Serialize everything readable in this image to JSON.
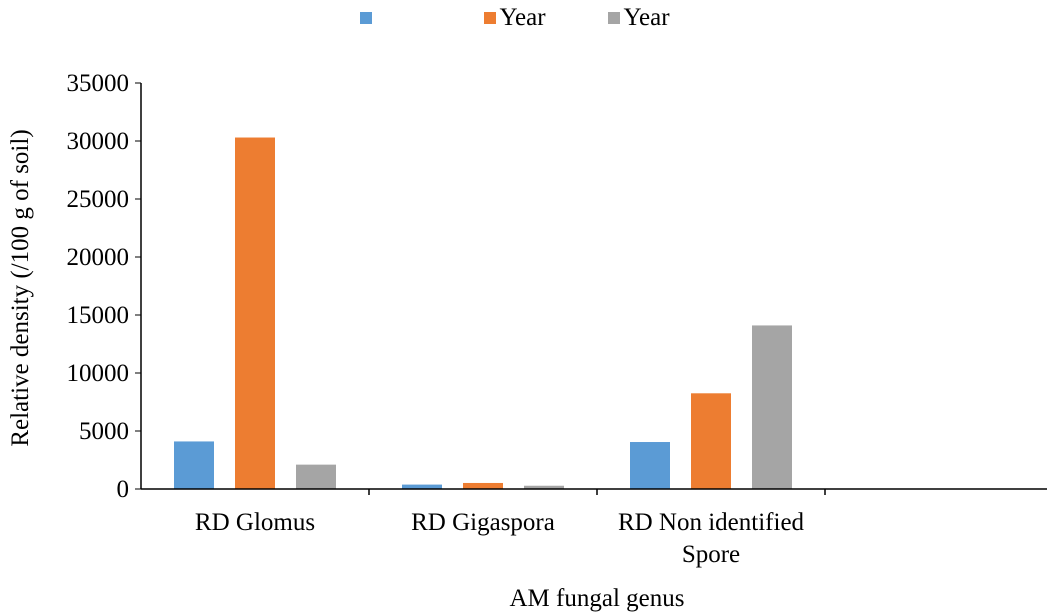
{
  "chart_data": {
    "type": "bar",
    "categories": [
      "RD Glomus",
      "RD Gigaspora",
      "RD Non identified Spore",
      ""
    ],
    "category_lines": [
      [
        "RD Glomus"
      ],
      [
        "RD Gigaspora"
      ],
      [
        "RD Non identified",
        "Spore"
      ],
      []
    ],
    "series": [
      {
        "name": "",
        "color": "#5b9bd5",
        "values": [
          4100,
          380,
          4050,
          null
        ]
      },
      {
        "name": "Year",
        "color": "#ed7d31",
        "values": [
          30300,
          520,
          8250,
          null
        ]
      },
      {
        "name": "Year",
        "color": "#a5a5a5",
        "values": [
          2100,
          280,
          14100,
          null
        ]
      }
    ],
    "xlabel": "AM fungal genus",
    "ylabel": "Relative density (/100 g of soil)",
    "ylim": [
      0,
      35000
    ],
    "yticks": [
      0,
      5000,
      10000,
      15000,
      20000,
      25000,
      30000,
      35000
    ],
    "grid": false,
    "legend_position": "top"
  }
}
